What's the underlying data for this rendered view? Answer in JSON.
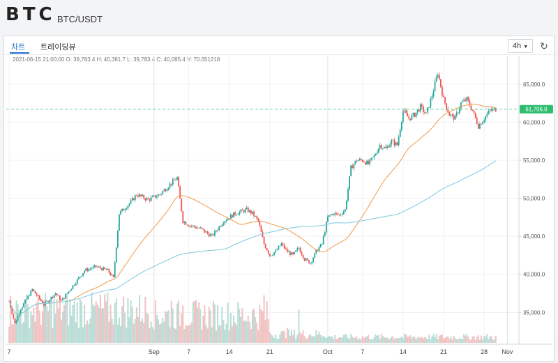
{
  "header": {
    "logo": "BTC",
    "pair": "BTC/USDT"
  },
  "tabs": [
    {
      "label": "차트",
      "active": true
    },
    {
      "label": "트레이딩뷰",
      "active": false
    }
  ],
  "controls": {
    "interval": "4h",
    "interval_icon": "chevron-down-icon",
    "refresh_icon": "refresh-icon"
  },
  "ohlc": {
    "text": "2021-06-15 21:00:00 O: 39,783.4 H: 40,381.7 L: 39,783.4 C: 40,085.4 V: 70.651218"
  },
  "colors": {
    "up": "#26a69a",
    "down": "#ef5350",
    "ma_fast": "#f0a35a",
    "ma_slow": "#88cde0",
    "last_price": "#2ebd6f"
  },
  "chart_data": {
    "type": "candlestick",
    "title": "",
    "interval": "4h",
    "ylim": [
      31000,
      68000
    ],
    "y_ticks": [
      35000,
      40000,
      45000,
      50000,
      55000,
      60000,
      65000
    ],
    "y_tick_labels": [
      "35,000.0",
      "40,000.0",
      "45,000.0",
      "50,000.0",
      "55,000.0",
      "60,000.0",
      "65,000.0"
    ],
    "x_ticks": [
      {
        "label": "7",
        "day": 7
      },
      {
        "label": "Sep",
        "day": 32
      },
      {
        "label": "7",
        "day": 38
      },
      {
        "label": "14",
        "day": 45
      },
      {
        "label": "21",
        "day": 52
      },
      {
        "label": "Oct",
        "day": 62
      },
      {
        "label": "7",
        "day": 68
      },
      {
        "label": "14",
        "day": 75
      },
      {
        "label": "21",
        "day": 82
      },
      {
        "label": "28",
        "day": 89
      },
      {
        "label": "Nov",
        "day": 93
      }
    ],
    "price_anchors": [
      {
        "day": 7,
        "close": 36500
      },
      {
        "day": 8,
        "close": 33500
      },
      {
        "day": 9,
        "close": 35500
      },
      {
        "day": 11,
        "close": 38000
      },
      {
        "day": 13,
        "close": 36000
      },
      {
        "day": 15,
        "close": 37500
      },
      {
        "day": 16,
        "close": 36500
      },
      {
        "day": 18,
        "close": 38500
      },
      {
        "day": 20,
        "close": 40500
      },
      {
        "day": 22,
        "close": 41000
      },
      {
        "day": 24,
        "close": 40500
      },
      {
        "day": 25,
        "close": 39500
      },
      {
        "day": 26,
        "close": 48000
      },
      {
        "day": 28,
        "close": 49500
      },
      {
        "day": 29,
        "close": 50500
      },
      {
        "day": 31,
        "close": 49800
      },
      {
        "day": 33,
        "close": 50500
      },
      {
        "day": 35,
        "close": 52000
      },
      {
        "day": 36,
        "close": 52700
      },
      {
        "day": 37,
        "close": 47000
      },
      {
        "day": 38,
        "close": 46500
      },
      {
        "day": 40,
        "close": 46000
      },
      {
        "day": 42,
        "close": 45000
      },
      {
        "day": 44,
        "close": 47000
      },
      {
        "day": 46,
        "close": 48000
      },
      {
        "day": 48,
        "close": 48500
      },
      {
        "day": 49,
        "close": 48000
      },
      {
        "day": 50,
        "close": 47000
      },
      {
        "day": 51,
        "close": 44000
      },
      {
        "day": 52,
        "close": 42500
      },
      {
        "day": 53,
        "close": 43000
      },
      {
        "day": 54,
        "close": 44000
      },
      {
        "day": 55,
        "close": 43000
      },
      {
        "day": 56,
        "close": 42500
      },
      {
        "day": 57,
        "close": 43500
      },
      {
        "day": 58,
        "close": 42000
      },
      {
        "day": 59,
        "close": 41500
      },
      {
        "day": 60,
        "close": 43000
      },
      {
        "day": 61,
        "close": 44000
      },
      {
        "day": 62,
        "close": 47500
      },
      {
        "day": 63,
        "close": 48000
      },
      {
        "day": 64,
        "close": 47800
      },
      {
        "day": 65,
        "close": 48500
      },
      {
        "day": 66,
        "close": 54000
      },
      {
        "day": 67,
        "close": 55000
      },
      {
        "day": 68,
        "close": 55000
      },
      {
        "day": 69,
        "close": 54500
      },
      {
        "day": 70,
        "close": 55500
      },
      {
        "day": 71,
        "close": 57000
      },
      {
        "day": 72,
        "close": 56500
      },
      {
        "day": 73,
        "close": 57500
      },
      {
        "day": 74,
        "close": 57000
      },
      {
        "day": 75,
        "close": 61500
      },
      {
        "day": 76,
        "close": 60500
      },
      {
        "day": 77,
        "close": 61000
      },
      {
        "day": 78,
        "close": 62000
      },
      {
        "day": 79,
        "close": 61000
      },
      {
        "day": 80,
        "close": 63500
      },
      {
        "day": 81,
        "close": 66500
      },
      {
        "day": 82,
        "close": 63000
      },
      {
        "day": 83,
        "close": 61000
      },
      {
        "day": 84,
        "close": 60500
      },
      {
        "day": 85,
        "close": 62500
      },
      {
        "day": 86,
        "close": 63000
      },
      {
        "day": 87,
        "close": 61500
      },
      {
        "day": 88,
        "close": 59500
      },
      {
        "day": 89,
        "close": 60500
      },
      {
        "day": 90,
        "close": 61500
      },
      {
        "day": 91,
        "close": 61706
      }
    ],
    "volume_ylim": [
      0,
      100
    ],
    "volume_pattern": [
      {
        "from_day": 7,
        "to_day": 32,
        "level": 45
      },
      {
        "from_day": 32,
        "to_day": 52,
        "level": 38
      },
      {
        "from_day": 52,
        "to_day": 62,
        "level": 12
      },
      {
        "from_day": 62,
        "to_day": 93,
        "level": 8
      }
    ],
    "volume_spikes": [
      {
        "day": 35,
        "level": 70
      },
      {
        "day": 37,
        "level": 80
      },
      {
        "day": 44,
        "level": 62
      },
      {
        "day": 51,
        "level": 55
      },
      {
        "day": 55,
        "level": 45
      },
      {
        "day": 57,
        "level": 58
      }
    ],
    "moving_averages": [
      {
        "period": 7,
        "color": "#f0a35a"
      },
      {
        "period": 25,
        "color": "#88cde0"
      }
    ],
    "last_price": 61706,
    "last_price_label": "61,706.0"
  }
}
